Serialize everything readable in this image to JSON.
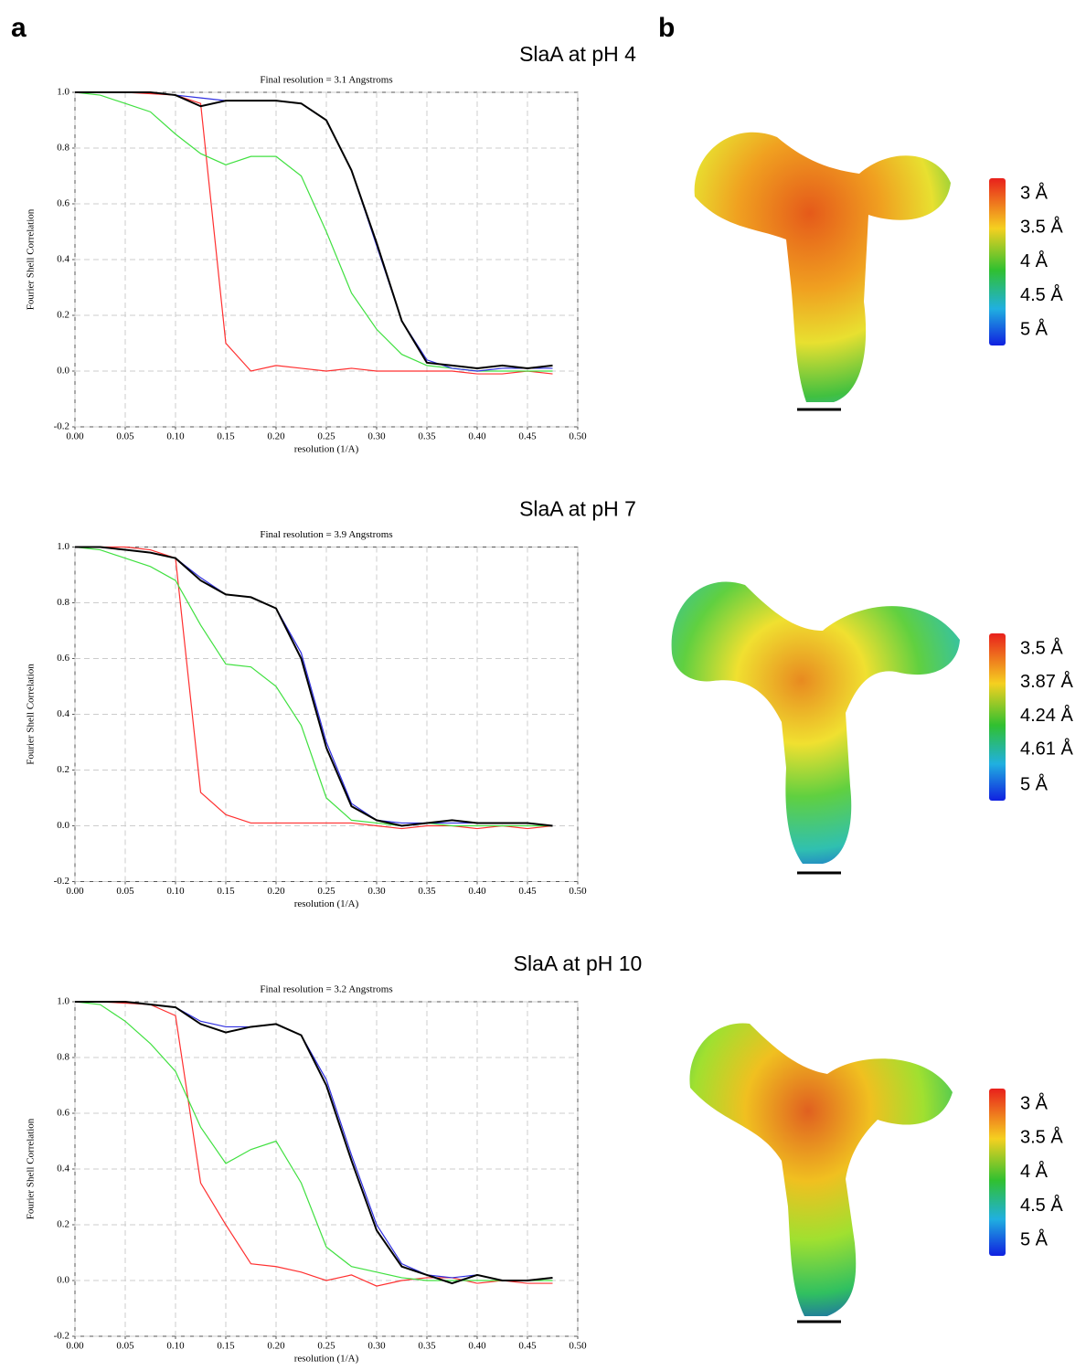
{
  "labels": [
    "a",
    "b"
  ],
  "chart_data": [
    {
      "type": "line",
      "title": "SlaA at pH 4",
      "subtitle": "Final resolution =  3.1 Angstroms",
      "xlabel": "resolution (1/A)",
      "ylabel": "Fourier Shell Correlation",
      "x": [
        0,
        0.025,
        0.05,
        0.075,
        0.1,
        0.125,
        0.15,
        0.175,
        0.2,
        0.225,
        0.25,
        0.275,
        0.3,
        0.325,
        0.35,
        0.375,
        0.4,
        0.425,
        0.45,
        0.475
      ],
      "series": [
        {
          "color": "#ff3030",
          "values": [
            1,
            1,
            1,
            0.995,
            0.99,
            0.96,
            0.1,
            0.0,
            0.02,
            0.01,
            0.0,
            0.01,
            0.0,
            0.0,
            0.0,
            0.0,
            -0.01,
            -0.01,
            0.0,
            -0.01
          ]
        },
        {
          "color": "#40e040",
          "values": [
            1,
            0.99,
            0.96,
            0.93,
            0.85,
            0.78,
            0.74,
            0.77,
            0.77,
            0.7,
            0.5,
            0.28,
            0.15,
            0.06,
            0.02,
            0.01,
            0.0,
            0.0,
            0.0,
            0.0
          ]
        },
        {
          "color": "#3030e0",
          "values": [
            1,
            1,
            1,
            1,
            0.99,
            0.98,
            0.97,
            0.97,
            0.97,
            0.96,
            0.9,
            0.72,
            0.45,
            0.18,
            0.04,
            0.01,
            0.0,
            0.01,
            0.01,
            0.01
          ]
        },
        {
          "color": "#000000",
          "values": [
            1,
            1,
            1,
            1,
            0.99,
            0.95,
            0.97,
            0.97,
            0.97,
            0.96,
            0.9,
            0.72,
            0.46,
            0.18,
            0.03,
            0.02,
            0.01,
            0.02,
            0.01,
            0.02
          ]
        }
      ],
      "xlim": [
        0,
        0.5
      ],
      "ylim": [
        -0.2,
        1.0
      ],
      "xticks": [
        {
          "value": 0,
          "label": "0.00"
        },
        {
          "value": 0.05,
          "label": "0.05"
        },
        {
          "value": 0.1,
          "label": "0.10"
        },
        {
          "value": 0.15,
          "label": "0.15"
        },
        {
          "value": 0.2,
          "label": "0.20"
        },
        {
          "value": 0.25,
          "label": "0.25"
        },
        {
          "value": 0.3,
          "label": "0.30"
        },
        {
          "value": 0.35,
          "label": "0.35"
        },
        {
          "value": 0.4,
          "label": "0.40"
        },
        {
          "value": 0.45,
          "label": "0.45"
        },
        {
          "value": 0.5,
          "label": "0.50"
        }
      ],
      "yticks": [
        -0.2,
        {
          "value": 0,
          "label": "0.0"
        },
        0.2,
        0.4,
        0.6,
        0.8,
        {
          "value": 1,
          "label": "1.0"
        }
      ],
      "grid": true
    },
    {
      "type": "line",
      "title": "SlaA at pH 7",
      "subtitle": "Final resolution =  3.9 Angstroms",
      "xlabel": "resolution (1/A)",
      "ylabel": "Fourier Shell Correlation",
      "x": [
        0,
        0.025,
        0.05,
        0.075,
        0.1,
        0.125,
        0.15,
        0.175,
        0.2,
        0.225,
        0.25,
        0.275,
        0.3,
        0.325,
        0.35,
        0.375,
        0.4,
        0.425,
        0.45,
        0.475
      ],
      "series": [
        {
          "color": "#ff3030",
          "values": [
            1,
            1,
            1,
            0.99,
            0.96,
            0.12,
            0.04,
            0.01,
            0.01,
            0.01,
            0.01,
            0.01,
            0.0,
            -0.01,
            0.0,
            0.0,
            -0.01,
            0.0,
            -0.01,
            0.0
          ]
        },
        {
          "color": "#40e040",
          "values": [
            1,
            0.99,
            0.96,
            0.93,
            0.88,
            0.72,
            0.58,
            0.57,
            0.5,
            0.36,
            0.1,
            0.02,
            0.01,
            0.0,
            0.01,
            0.0,
            0.0,
            0.0,
            0.0,
            0.0
          ]
        },
        {
          "color": "#3030e0",
          "values": [
            1,
            1,
            0.99,
            0.98,
            0.96,
            0.89,
            0.83,
            0.82,
            0.78,
            0.62,
            0.3,
            0.08,
            0.02,
            0.01,
            0.01,
            0.01,
            0.01,
            0.01,
            0.01,
            0.0
          ]
        },
        {
          "color": "#000000",
          "values": [
            1,
            1,
            0.99,
            0.98,
            0.96,
            0.88,
            0.83,
            0.82,
            0.78,
            0.6,
            0.28,
            0.07,
            0.02,
            0.0,
            0.01,
            0.02,
            0.01,
            0.01,
            0.01,
            0.0
          ]
        }
      ],
      "xlim": [
        0,
        0.5
      ],
      "ylim": [
        -0.2,
        1.0
      ],
      "xticks": [
        {
          "value": 0,
          "label": "0.00"
        },
        {
          "value": 0.05,
          "label": "0.05"
        },
        {
          "value": 0.1,
          "label": "0.10"
        },
        {
          "value": 0.15,
          "label": "0.15"
        },
        {
          "value": 0.2,
          "label": "0.20"
        },
        {
          "value": 0.25,
          "label": "0.25"
        },
        {
          "value": 0.3,
          "label": "0.30"
        },
        {
          "value": 0.35,
          "label": "0.35"
        },
        {
          "value": 0.4,
          "label": "0.40"
        },
        {
          "value": 0.45,
          "label": "0.45"
        },
        {
          "value": 0.5,
          "label": "0.50"
        }
      ],
      "yticks": [
        -0.2,
        {
          "value": 0,
          "label": "0.0"
        },
        0.2,
        0.4,
        0.6,
        0.8,
        {
          "value": 1,
          "label": "1.0"
        }
      ],
      "grid": true
    },
    {
      "type": "line",
      "title": "SlaA at pH 10",
      "subtitle": "Final resolution =  3.2 Angstroms",
      "xlabel": "resolution (1/A)",
      "ylabel": "Fourier Shell Correlation",
      "x": [
        0,
        0.025,
        0.05,
        0.075,
        0.1,
        0.125,
        0.15,
        0.175,
        0.2,
        0.225,
        0.25,
        0.275,
        0.3,
        0.325,
        0.35,
        0.375,
        0.4,
        0.425,
        0.45,
        0.475
      ],
      "series": [
        {
          "color": "#ff3030",
          "values": [
            1,
            1,
            0.995,
            0.99,
            0.95,
            0.35,
            0.2,
            0.06,
            0.05,
            0.03,
            0.0,
            0.02,
            -0.02,
            0.0,
            0.01,
            0.01,
            -0.01,
            0.0,
            -0.01,
            -0.01
          ]
        },
        {
          "color": "#40e040",
          "values": [
            1,
            0.99,
            0.93,
            0.85,
            0.75,
            0.55,
            0.42,
            0.47,
            0.5,
            0.35,
            0.12,
            0.05,
            0.03,
            0.01,
            0.0,
            0.0,
            0.0,
            0.0,
            0.0,
            0.0
          ]
        },
        {
          "color": "#3030e0",
          "values": [
            1,
            1,
            1,
            0.99,
            0.98,
            0.93,
            0.91,
            0.91,
            0.92,
            0.88,
            0.72,
            0.45,
            0.2,
            0.06,
            0.02,
            0.01,
            0.02,
            0.0,
            0.0,
            0.01
          ]
        },
        {
          "color": "#000000",
          "values": [
            1,
            1,
            1,
            0.99,
            0.98,
            0.92,
            0.89,
            0.91,
            0.92,
            0.88,
            0.7,
            0.43,
            0.18,
            0.05,
            0.02,
            -0.01,
            0.02,
            0.0,
            0.0,
            0.01
          ]
        }
      ],
      "xlim": [
        0,
        0.5
      ],
      "ylim": [
        -0.2,
        1.0
      ],
      "xticks": [
        {
          "value": 0,
          "label": "0.00"
        },
        {
          "value": 0.05,
          "label": "0.05"
        },
        {
          "value": 0.1,
          "label": "0.10"
        },
        {
          "value": 0.15,
          "label": "0.15"
        },
        {
          "value": 0.2,
          "label": "0.20"
        },
        {
          "value": 0.25,
          "label": "0.25"
        },
        {
          "value": 0.3,
          "label": "0.30"
        },
        {
          "value": 0.35,
          "label": "0.35"
        },
        {
          "value": 0.4,
          "label": "0.40"
        },
        {
          "value": 0.45,
          "label": "0.45"
        },
        {
          "value": 0.5,
          "label": "0.50"
        }
      ],
      "yticks": [
        -0.2,
        {
          "value": 0,
          "label": "0.0"
        },
        0.2,
        0.4,
        0.6,
        0.8,
        {
          "value": 1,
          "label": "1.0"
        }
      ],
      "grid": true
    }
  ],
  "colorbars": [
    {
      "clim": [
        3,
        5
      ],
      "ticks": [
        {
          "value": 3,
          "label": "3 Å"
        },
        {
          "value": 3.5,
          "label": "3.5 Å"
        },
        {
          "value": 4,
          "label": "4 Å"
        },
        {
          "value": 4.5,
          "label": "4.5 Å"
        },
        {
          "value": 5,
          "label": "5 Å"
        }
      ]
    },
    {
      "clim": [
        3.5,
        5
      ],
      "ticks": [
        {
          "value": 3.5,
          "label": "3.5 Å"
        },
        {
          "value": 3.87,
          "label": "3.87 Å"
        },
        {
          "value": 4.24,
          "label": "4.24 Å"
        },
        {
          "value": 4.61,
          "label": "4.61 Å"
        },
        {
          "value": 5,
          "label": "5 Å"
        }
      ]
    },
    {
      "clim": [
        3,
        5
      ],
      "ticks": [
        {
          "value": 3,
          "label": "3 Å"
        },
        {
          "value": 3.5,
          "label": "3.5 Å"
        },
        {
          "value": 4,
          "label": "4 Å"
        },
        {
          "value": 4.5,
          "label": "4.5 Å"
        },
        {
          "value": 5,
          "label": "5 Å"
        }
      ]
    }
  ]
}
